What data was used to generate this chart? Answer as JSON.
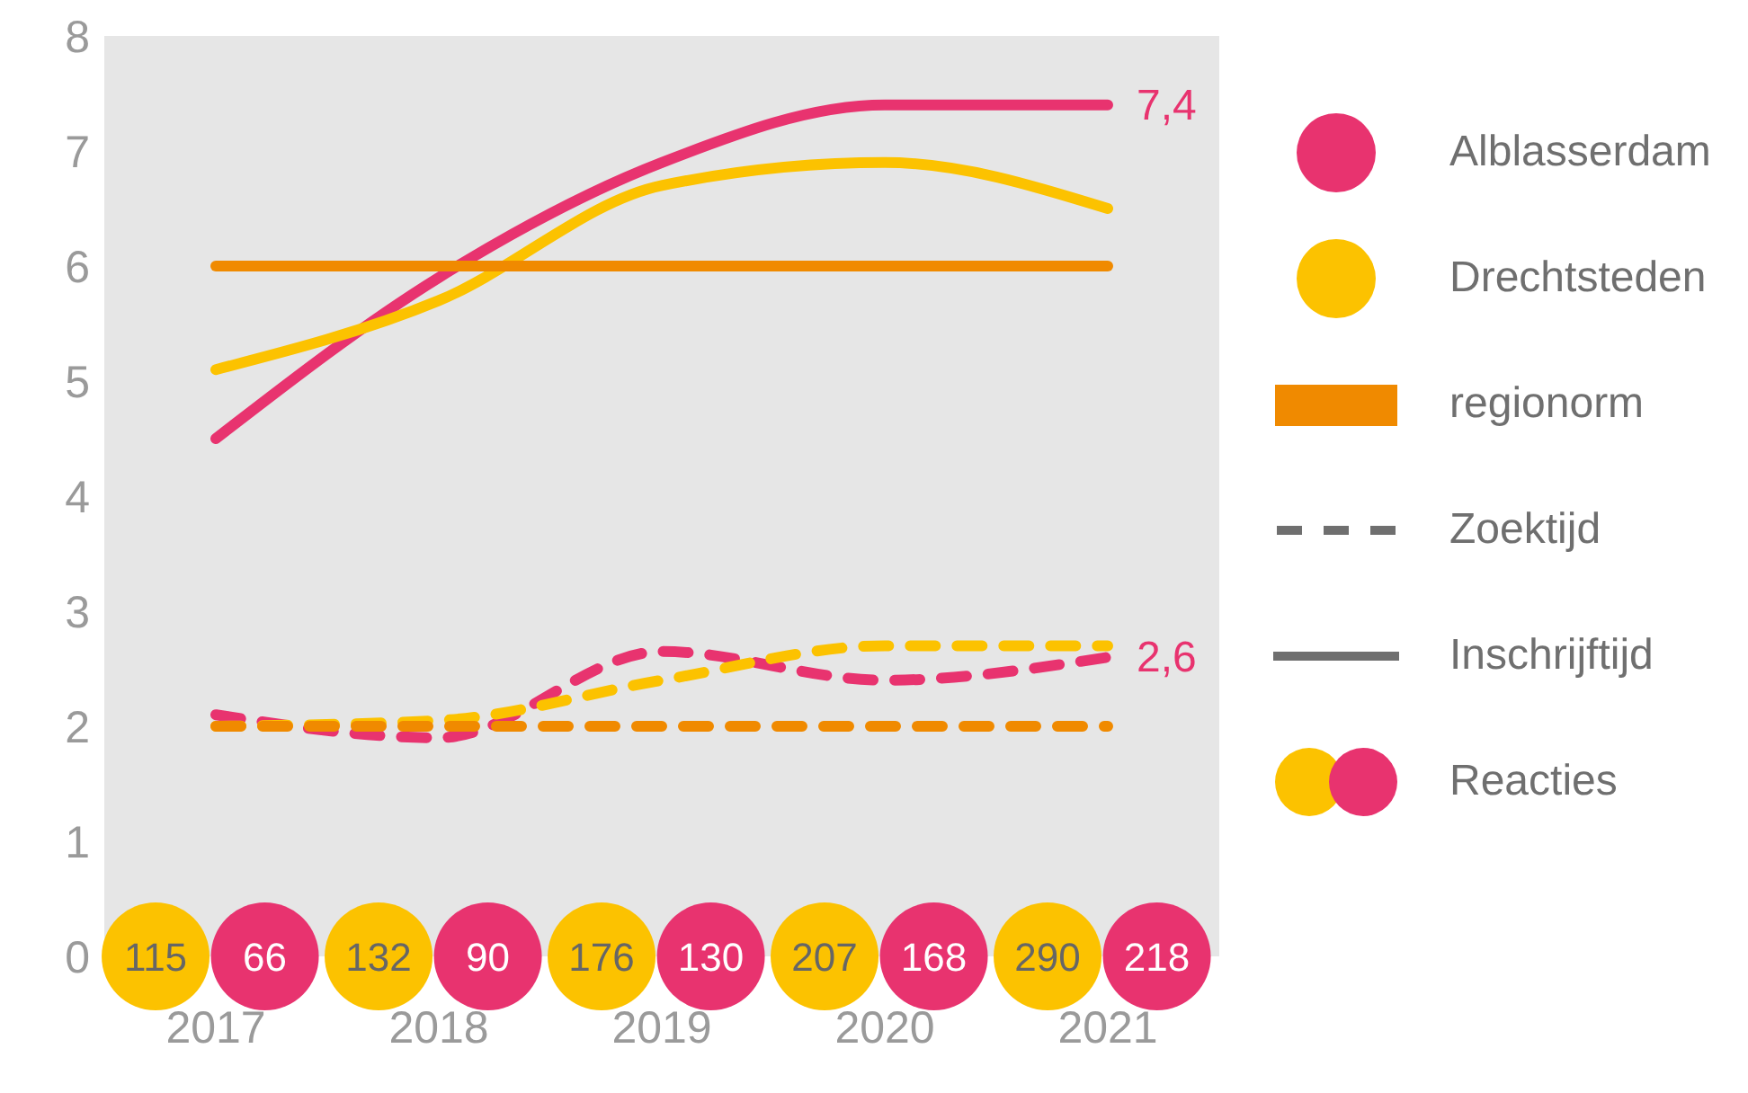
{
  "chart_data": {
    "type": "line",
    "categories": [
      "2017",
      "2018",
      "2019",
      "2020",
      "2021"
    ],
    "series": [
      {
        "name": "Alblasserdam",
        "color": "#e8336f",
        "values": [
          4.5,
          5.9,
          6.9,
          7.4,
          7.4
        ],
        "value_labels": [
          null,
          null,
          null,
          null,
          "7,4"
        ]
      },
      {
        "name": "Drechtsteden",
        "color": "#fcc200",
        "values": [
          5.1,
          5.7,
          6.7,
          6.9,
          6.5
        ]
      },
      {
        "name": "regionorm",
        "color": "#f08a00",
        "values": [
          6,
          6,
          6,
          6,
          6
        ]
      },
      {
        "color": "#e8336f",
        "values": [
          2.1,
          1.9,
          2.65,
          2.4,
          2.6
        ],
        "line_style": "dashed",
        "value_labels": [
          null,
          null,
          null,
          null,
          "2,6"
        ]
      },
      {
        "color": "#fcc200",
        "values": [
          2.0,
          2.05,
          2.4,
          2.7,
          2.7
        ],
        "line_style": "dashed"
      },
      {
        "color": "#f08a00",
        "values": [
          2,
          2,
          2,
          2,
          2
        ],
        "line_style": "dashed"
      }
    ],
    "ylim": [
      0,
      8
    ],
    "yticks": [
      0,
      1,
      2,
      3,
      4,
      5,
      6,
      7,
      8
    ],
    "grid": false,
    "legend": "right",
    "marker": "none",
    "line_style": "solid",
    "annotations": [
      "Zoektijd",
      "Inschrijftijd",
      "Reacties",
      "115",
      "66",
      "132",
      "90",
      "176",
      "130",
      "207",
      "168",
      "290",
      "218"
    ]
  }
}
